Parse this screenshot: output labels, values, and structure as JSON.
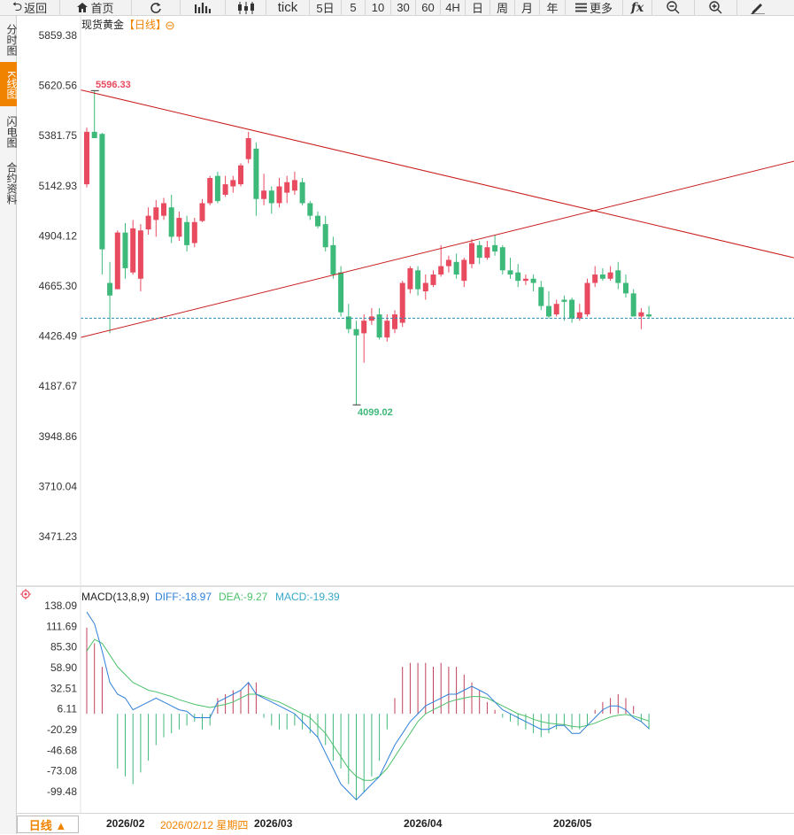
{
  "toolbar": {
    "back": "返回",
    "home": "首页",
    "periods": [
      "tick",
      "5日",
      "5",
      "10",
      "30",
      "60",
      "4H",
      "日",
      "周",
      "月",
      "年"
    ],
    "more": "更多",
    "icons": [
      "back-arrow-icon",
      "home-icon",
      "refresh-icon",
      "chart-type-icon",
      "candle-icon",
      "formula-icon",
      "zoom-out-icon",
      "zoom-in-icon",
      "draw-pen-icon"
    ]
  },
  "sidetabs": [
    "分时图",
    "K线图",
    "闪电图",
    "合约资料"
  ],
  "sidetab_active": 1,
  "header": {
    "instrument": "现货黄金",
    "period_tag": "【日线】",
    "macd_name": "MACD(13,8,9)",
    "diff": "DIFF:-18.97",
    "dea": "DEA:-9.27",
    "macd": "MACD:-19.39"
  },
  "price_axis": [
    "5859.38",
    "5620.56",
    "5381.75",
    "5142.93",
    "4904.12",
    "4665.30",
    "4426.49",
    "4187.67",
    "3948.86",
    "3710.04",
    "3471.23"
  ],
  "macd_axis": [
    "138.09",
    "111.69",
    "85.30",
    "58.90",
    "32.51",
    "6.11",
    "-20.29",
    "-46.68",
    "-73.08",
    "-99.48"
  ],
  "annotations": {
    "high": "5596.33",
    "low": "4099.02"
  },
  "bottom": {
    "period_button": "日线 ▲",
    "cursor_date": "2026/02/12 星期四",
    "x_labels": [
      "2026/02",
      "2026/03",
      "2026/04",
      "2026/05"
    ]
  },
  "colors": {
    "up": "#e84a5f",
    "down": "#3db97a",
    "diff": "#2f7fd8",
    "dea": "#4cc06a",
    "trend": "#c81e1e",
    "accent": "#f08300"
  },
  "chart_data": {
    "type": "candlestick",
    "title": "现货黄金【日线】",
    "ylim": [
      3351.82,
      5978.79
    ],
    "last_price": 4512,
    "candles": [
      {
        "o": 5150,
        "h": 5420,
        "l": 5135,
        "c": 5400
      },
      {
        "o": 5400,
        "h": 5596.33,
        "l": 5370,
        "c": 5370
      },
      {
        "o": 5390,
        "h": 5395,
        "l": 4720,
        "c": 4840
      },
      {
        "o": 4680,
        "h": 4780,
        "l": 4440,
        "c": 4620
      },
      {
        "o": 4650,
        "h": 4930,
        "l": 4650,
        "c": 4920
      },
      {
        "o": 4920,
        "h": 4965,
        "l": 4700,
        "c": 4750
      },
      {
        "o": 4730,
        "h": 4980,
        "l": 4720,
        "c": 4940
      },
      {
        "o": 4700,
        "h": 4960,
        "l": 4640,
        "c": 4930
      },
      {
        "o": 4935,
        "h": 5040,
        "l": 4910,
        "c": 5000
      },
      {
        "o": 4980,
        "h": 5075,
        "l": 4900,
        "c": 5040
      },
      {
        "o": 5000,
        "h": 5085,
        "l": 4980,
        "c": 5060
      },
      {
        "o": 5040,
        "h": 5100,
        "l": 4870,
        "c": 4900
      },
      {
        "o": 4900,
        "h": 5020,
        "l": 4880,
        "c": 4990
      },
      {
        "o": 4970,
        "h": 5000,
        "l": 4830,
        "c": 4860
      },
      {
        "o": 4870,
        "h": 4990,
        "l": 4850,
        "c": 4970
      },
      {
        "o": 4975,
        "h": 5080,
        "l": 4970,
        "c": 5060
      },
      {
        "o": 5060,
        "h": 5190,
        "l": 5050,
        "c": 5180
      },
      {
        "o": 5190,
        "h": 5210,
        "l": 5060,
        "c": 5070
      },
      {
        "o": 5100,
        "h": 5190,
        "l": 5090,
        "c": 5150
      },
      {
        "o": 5140,
        "h": 5190,
        "l": 5110,
        "c": 5170
      },
      {
        "o": 5150,
        "h": 5250,
        "l": 5140,
        "c": 5240
      },
      {
        "o": 5270,
        "h": 5400,
        "l": 5250,
        "c": 5370
      },
      {
        "o": 5320,
        "h": 5350,
        "l": 5000,
        "c": 5080
      },
      {
        "o": 5080,
        "h": 5200,
        "l": 5050,
        "c": 5120
      },
      {
        "o": 5120,
        "h": 5140,
        "l": 5010,
        "c": 5060
      },
      {
        "o": 5060,
        "h": 5180,
        "l": 5040,
        "c": 5140
      },
      {
        "o": 5110,
        "h": 5190,
        "l": 5060,
        "c": 5160
      },
      {
        "o": 5120,
        "h": 5210,
        "l": 5100,
        "c": 5170
      },
      {
        "o": 5160,
        "h": 5180,
        "l": 5050,
        "c": 5060
      },
      {
        "o": 5060,
        "h": 5070,
        "l": 4980,
        "c": 5000
      },
      {
        "o": 5000,
        "h": 5020,
        "l": 4940,
        "c": 4950
      },
      {
        "o": 4960,
        "h": 5000,
        "l": 4830,
        "c": 4850
      },
      {
        "o": 4860,
        "h": 4900,
        "l": 4700,
        "c": 4720
      },
      {
        "o": 4730,
        "h": 4760,
        "l": 4520,
        "c": 4540
      },
      {
        "o": 4520,
        "h": 4580,
        "l": 4440,
        "c": 4460
      },
      {
        "o": 4460,
        "h": 4500,
        "l": 4099.02,
        "c": 4430
      },
      {
        "o": 4440,
        "h": 4530,
        "l": 4300,
        "c": 4500
      },
      {
        "o": 4500,
        "h": 4560,
        "l": 4480,
        "c": 4520
      },
      {
        "o": 4530,
        "h": 4560,
        "l": 4410,
        "c": 4420
      },
      {
        "o": 4420,
        "h": 4530,
        "l": 4400,
        "c": 4500
      },
      {
        "o": 4460,
        "h": 4550,
        "l": 4440,
        "c": 4530
      },
      {
        "o": 4490,
        "h": 4690,
        "l": 4470,
        "c": 4680
      },
      {
        "o": 4650,
        "h": 4760,
        "l": 4630,
        "c": 4750
      },
      {
        "o": 4740,
        "h": 4760,
        "l": 4620,
        "c": 4650
      },
      {
        "o": 4640,
        "h": 4720,
        "l": 4600,
        "c": 4680
      },
      {
        "o": 4670,
        "h": 4740,
        "l": 4660,
        "c": 4720
      },
      {
        "o": 4720,
        "h": 4860,
        "l": 4710,
        "c": 4760
      },
      {
        "o": 4760,
        "h": 4810,
        "l": 4730,
        "c": 4790
      },
      {
        "o": 4780,
        "h": 4820,
        "l": 4700,
        "c": 4720
      },
      {
        "o": 4690,
        "h": 4800,
        "l": 4660,
        "c": 4790
      },
      {
        "o": 4770,
        "h": 4890,
        "l": 4750,
        "c": 4870
      },
      {
        "o": 4860,
        "h": 4880,
        "l": 4770,
        "c": 4800
      },
      {
        "o": 4800,
        "h": 4880,
        "l": 4790,
        "c": 4850
      },
      {
        "o": 4860,
        "h": 4910,
        "l": 4810,
        "c": 4830
      },
      {
        "o": 4850,
        "h": 4860,
        "l": 4720,
        "c": 4740
      },
      {
        "o": 4740,
        "h": 4800,
        "l": 4700,
        "c": 4720
      },
      {
        "o": 4730,
        "h": 4770,
        "l": 4660,
        "c": 4690
      },
      {
        "o": 4690,
        "h": 4720,
        "l": 4670,
        "c": 4700
      },
      {
        "o": 4700,
        "h": 4720,
        "l": 4640,
        "c": 4680
      },
      {
        "o": 4660,
        "h": 4690,
        "l": 4550,
        "c": 4570
      },
      {
        "o": 4570,
        "h": 4640,
        "l": 4510,
        "c": 4520
      },
      {
        "o": 4530,
        "h": 4600,
        "l": 4520,
        "c": 4580
      },
      {
        "o": 4600,
        "h": 4620,
        "l": 4500,
        "c": 4590
      },
      {
        "o": 4600,
        "h": 4610,
        "l": 4490,
        "c": 4510
      },
      {
        "o": 4510,
        "h": 4580,
        "l": 4500,
        "c": 4540
      },
      {
        "o": 4530,
        "h": 4700,
        "l": 4520,
        "c": 4680
      },
      {
        "o": 4680,
        "h": 4760,
        "l": 4660,
        "c": 4720
      },
      {
        "o": 4720,
        "h": 4750,
        "l": 4690,
        "c": 4700
      },
      {
        "o": 4700,
        "h": 4760,
        "l": 4690,
        "c": 4730
      },
      {
        "o": 4740,
        "h": 4780,
        "l": 4650,
        "c": 4680
      },
      {
        "o": 4680,
        "h": 4720,
        "l": 4610,
        "c": 4630
      },
      {
        "o": 4630,
        "h": 4650,
        "l": 4520,
        "c": 4520
      },
      {
        "o": 4520,
        "h": 4560,
        "l": 4460,
        "c": 4540
      },
      {
        "o": 4530,
        "h": 4570,
        "l": 4510,
        "c": 4520
      }
    ],
    "trendlines": [
      {
        "x0": 0,
        "y0": 5600,
        "x1": 900,
        "y1": 4800
      },
      {
        "x0": 0,
        "y0": 4420,
        "x1": 900,
        "y1": 5260
      }
    ],
    "macd": {
      "ylim": [
        -115,
        155
      ],
      "hist": [
        110,
        90,
        60,
        0,
        -70,
        -80,
        -90,
        -75,
        -60,
        -40,
        -30,
        -25,
        -20,
        -15,
        -10,
        -20,
        -15,
        20,
        25,
        30,
        30,
        40,
        40,
        -5,
        -15,
        -20,
        -20,
        -15,
        -20,
        -25,
        -30,
        -40,
        -60,
        -70,
        -90,
        -110,
        -100,
        -80,
        -60,
        -20,
        20,
        60,
        65,
        65,
        65,
        60,
        65,
        60,
        60,
        50,
        40,
        30,
        15,
        5,
        -5,
        -10,
        -15,
        -20,
        -25,
        -30,
        -25,
        -20,
        -15,
        -20,
        -20,
        -15,
        5,
        15,
        20,
        25,
        20,
        10,
        -10,
        -20
      ],
      "diff": [
        130,
        115,
        80,
        40,
        25,
        20,
        5,
        10,
        15,
        20,
        15,
        10,
        5,
        3,
        -5,
        -5,
        -5,
        15,
        20,
        25,
        30,
        40,
        25,
        20,
        15,
        10,
        5,
        0,
        -10,
        -20,
        -30,
        -50,
        -70,
        -90,
        -100,
        -110,
        -100,
        -90,
        -80,
        -60,
        -40,
        -25,
        -10,
        0,
        10,
        15,
        20,
        25,
        25,
        30,
        35,
        30,
        25,
        15,
        5,
        0,
        -5,
        -10,
        -15,
        -20,
        -20,
        -15,
        -15,
        -25,
        -25,
        -15,
        -5,
        5,
        10,
        10,
        5,
        -5,
        -10,
        -18.97
      ],
      "dea": [
        80,
        95,
        90,
        75,
        60,
        50,
        40,
        35,
        30,
        28,
        25,
        22,
        18,
        15,
        12,
        10,
        8,
        10,
        12,
        15,
        20,
        25,
        25,
        22,
        18,
        15,
        10,
        5,
        0,
        -5,
        -15,
        -25,
        -40,
        -55,
        -70,
        -80,
        -85,
        -85,
        -80,
        -70,
        -55,
        -40,
        -25,
        -10,
        0,
        5,
        10,
        15,
        18,
        20,
        22,
        22,
        20,
        15,
        10,
        5,
        0,
        -3,
        -7,
        -10,
        -12,
        -13,
        -14,
        -16,
        -17,
        -15,
        -12,
        -8,
        -4,
        -2,
        -1,
        -3,
        -6,
        -9.27
      ]
    }
  }
}
